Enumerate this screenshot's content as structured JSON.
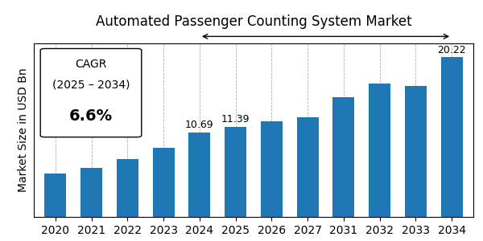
{
  "chart_data": {
    "type": "bar",
    "title": "Automated Passenger Counting System Market",
    "y_label": "Market Size in USD Bn",
    "categories": [
      "2020",
      "2021",
      "2022",
      "2023",
      "2024",
      "2025",
      "2026",
      "2027",
      "2031",
      "2032",
      "2033",
      "2034"
    ],
    "values": [
      5.5,
      6.2,
      7.3,
      8.8,
      10.69,
      11.39,
      12.15,
      12.65,
      15.2,
      16.9,
      16.6,
      20.22
    ],
    "value_labels": [
      null,
      null,
      null,
      null,
      "10.69",
      "11.39",
      null,
      null,
      null,
      null,
      null,
      "20.22"
    ],
    "data_labels": true,
    "ylim": [
      0,
      22
    ],
    "grid": "x",
    "tick_labels": "x",
    "annotations": [
      "CAGR",
      "(2025 – 2034)",
      "6.6%"
    ]
  }
}
